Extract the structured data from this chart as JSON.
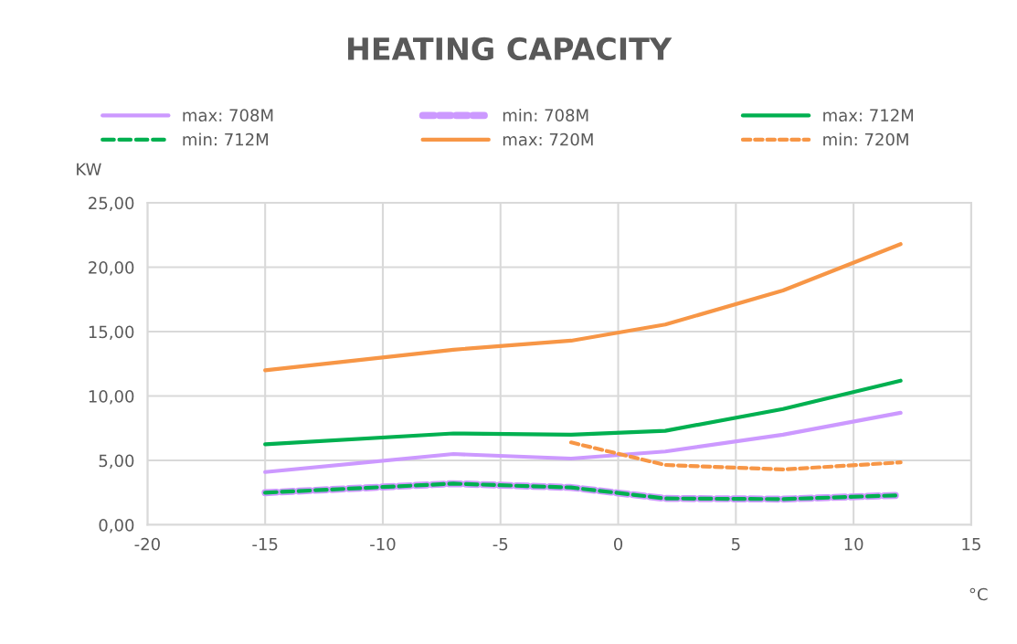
{
  "chart_data": {
    "type": "line",
    "title": "HEATING CAPACITY",
    "xlabel": "°C",
    "ylabel": "KW",
    "x": [
      -15,
      -7,
      -2,
      2,
      7,
      12
    ],
    "series": [
      {
        "name": "max: 708M",
        "color": "#cc99ff",
        "line_style": "solid",
        "values": [
          4.1,
          5.5,
          5.15,
          5.7,
          7.0,
          8.7
        ]
      },
      {
        "name": "min: 708M",
        "color": "#cc99ff",
        "line_style": "dashed",
        "values": [
          2.5,
          3.2,
          2.9,
          2.05,
          2.0,
          2.3
        ]
      },
      {
        "name": "max: 712M",
        "color": "#00b050",
        "line_style": "solid",
        "values": [
          6.25,
          7.1,
          7.0,
          7.3,
          9.0,
          11.2
        ]
      },
      {
        "name": "min: 712M",
        "color": "#00b050",
        "line_style": "dashed",
        "values": [
          2.5,
          3.2,
          2.9,
          2.05,
          2.0,
          2.3
        ]
      },
      {
        "name": "max: 720M",
        "color": "#f79646",
        "line_style": "solid",
        "values": [
          12.0,
          13.6,
          14.3,
          15.55,
          18.2,
          21.8
        ]
      },
      {
        "name": "min: 720M",
        "color": "#f79646",
        "line_style": "dotted",
        "values": [
          null,
          null,
          6.4,
          4.65,
          4.3,
          4.85
        ]
      }
    ],
    "xlim": [
      -20,
      15
    ],
    "xticks": [
      -20,
      -15,
      -10,
      -5,
      0,
      5,
      10,
      15
    ],
    "ylim": [
      0,
      25
    ],
    "yticks": [
      {
        "value": 0,
        "label": "0,00"
      },
      {
        "value": 5,
        "label": "5,00"
      },
      {
        "value": 10,
        "label": "10,00"
      },
      {
        "value": 15,
        "label": "15,00"
      },
      {
        "value": 20,
        "label": "20,00"
      },
      {
        "value": 25,
        "label": "25,00"
      }
    ],
    "grid": true,
    "legend": "top",
    "marker": "none"
  }
}
